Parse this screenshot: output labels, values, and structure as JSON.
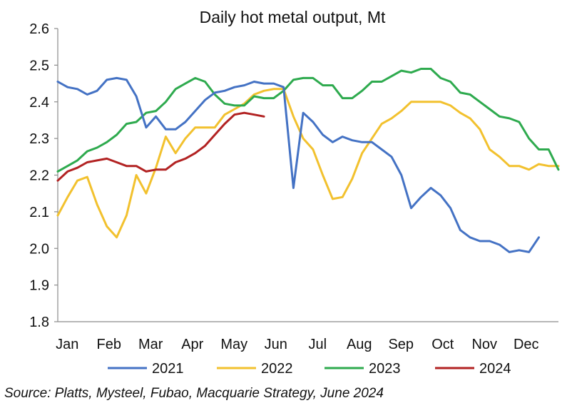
{
  "chart_data": {
    "type": "line",
    "title": "Daily hot metal output, Mt",
    "xlabel": "",
    "ylabel": "",
    "ylim": [
      1.8,
      2.6
    ],
    "yticks": [
      "1.8",
      "1.9",
      "2.0",
      "2.1",
      "2.2",
      "2.3",
      "2.4",
      "2.5",
      "2.6"
    ],
    "x_domain": [
      1,
      52
    ],
    "categories": [
      "Jan",
      "Feb",
      "Mar",
      "Apr",
      "May",
      "Jun",
      "Jul",
      "Aug",
      "Sep",
      "Oct",
      "Nov",
      "Dec"
    ],
    "grid": false,
    "legend_position": "bottom",
    "series": [
      {
        "name": "2021",
        "color": "#4472C4",
        "x": [
          1,
          2,
          3,
          4,
          5,
          6,
          7,
          8,
          9,
          10,
          11,
          12,
          13,
          14,
          15,
          16,
          17,
          18,
          19,
          20,
          21,
          22,
          23,
          24,
          25,
          26,
          27,
          28,
          29,
          30,
          31,
          32,
          33,
          34,
          35,
          36,
          37,
          38,
          39,
          40,
          41,
          42,
          43,
          44,
          45,
          46,
          47,
          48,
          49,
          50,
          51,
          52
        ],
        "values": [
          2.455,
          2.44,
          2.435,
          2.42,
          2.43,
          2.46,
          2.465,
          2.46,
          2.415,
          2.33,
          2.36,
          2.325,
          2.325,
          2.345,
          2.375,
          2.405,
          2.425,
          2.43,
          2.44,
          2.445,
          2.455,
          2.45,
          2.45,
          2.44,
          2.165,
          2.37,
          2.345,
          2.31,
          2.29,
          2.305,
          2.295,
          2.29,
          2.29,
          2.27,
          2.25,
          2.2,
          2.11,
          2.14,
          2.165,
          2.145,
          2.11,
          2.05,
          2.03,
          2.02,
          2.02,
          2.01,
          1.99,
          1.995,
          1.99,
          2.03,
          null,
          null
        ]
      },
      {
        "name": "2022",
        "color": "#F2C12E",
        "x": [
          1,
          2,
          3,
          4,
          5,
          6,
          7,
          8,
          9,
          10,
          11,
          12,
          13,
          14,
          15,
          16,
          17,
          18,
          19,
          20,
          21,
          22,
          23,
          24,
          25,
          26,
          27,
          28,
          29,
          30,
          31,
          32,
          33,
          34,
          35,
          36,
          37,
          38,
          39,
          40,
          41,
          42,
          43,
          44,
          45,
          46,
          47,
          48,
          49,
          50,
          51,
          52
        ],
        "values": [
          2.09,
          2.14,
          2.185,
          2.195,
          2.12,
          2.06,
          2.03,
          2.09,
          2.2,
          2.15,
          2.22,
          2.305,
          2.26,
          2.3,
          2.33,
          2.33,
          2.33,
          2.365,
          2.38,
          2.395,
          2.42,
          2.43,
          2.435,
          2.435,
          2.36,
          2.3,
          2.27,
          2.2,
          2.135,
          2.14,
          2.19,
          2.26,
          2.3,
          2.34,
          2.355,
          2.375,
          2.4,
          2.4,
          2.4,
          2.4,
          2.39,
          2.37,
          2.355,
          2.325,
          2.27,
          2.25,
          2.225,
          2.225,
          2.215,
          2.23,
          2.225,
          2.225
        ]
      },
      {
        "name": "2023",
        "color": "#2EAA4E",
        "x": [
          1,
          2,
          3,
          4,
          5,
          6,
          7,
          8,
          9,
          10,
          11,
          12,
          13,
          14,
          15,
          16,
          17,
          18,
          19,
          20,
          21,
          22,
          23,
          24,
          25,
          26,
          27,
          28,
          29,
          30,
          31,
          32,
          33,
          34,
          35,
          36,
          37,
          38,
          39,
          40,
          41,
          42,
          43,
          44,
          45,
          46,
          47,
          48,
          49,
          50,
          51,
          52
        ],
        "values": [
          2.21,
          2.225,
          2.24,
          2.265,
          2.275,
          2.29,
          2.31,
          2.34,
          2.345,
          2.37,
          2.375,
          2.4,
          2.435,
          2.45,
          2.465,
          2.455,
          2.42,
          2.395,
          2.39,
          2.39,
          2.415,
          2.41,
          2.41,
          2.43,
          2.46,
          2.465,
          2.465,
          2.445,
          2.445,
          2.41,
          2.41,
          2.43,
          2.455,
          2.455,
          2.47,
          2.485,
          2.48,
          2.49,
          2.49,
          2.465,
          2.455,
          2.425,
          2.42,
          2.4,
          2.38,
          2.36,
          2.355,
          2.345,
          2.3,
          2.27,
          2.27,
          2.215
        ]
      },
      {
        "name": "2024",
        "color": "#B22222",
        "x": [
          1,
          2,
          3,
          4,
          5,
          6,
          7,
          8,
          9,
          10,
          11,
          12,
          13,
          14,
          15,
          16,
          17,
          18,
          19,
          20,
          21,
          22
        ],
        "values": [
          2.185,
          2.21,
          2.22,
          2.235,
          2.24,
          2.245,
          2.235,
          2.225,
          2.225,
          2.21,
          2.215,
          2.215,
          2.235,
          2.245,
          2.26,
          2.28,
          2.31,
          2.34,
          2.365,
          2.37,
          2.365,
          2.36
        ]
      }
    ]
  },
  "source_note": "Source: Platts, Mysteel, Fubao, Macquarie Strategy, June 2024"
}
